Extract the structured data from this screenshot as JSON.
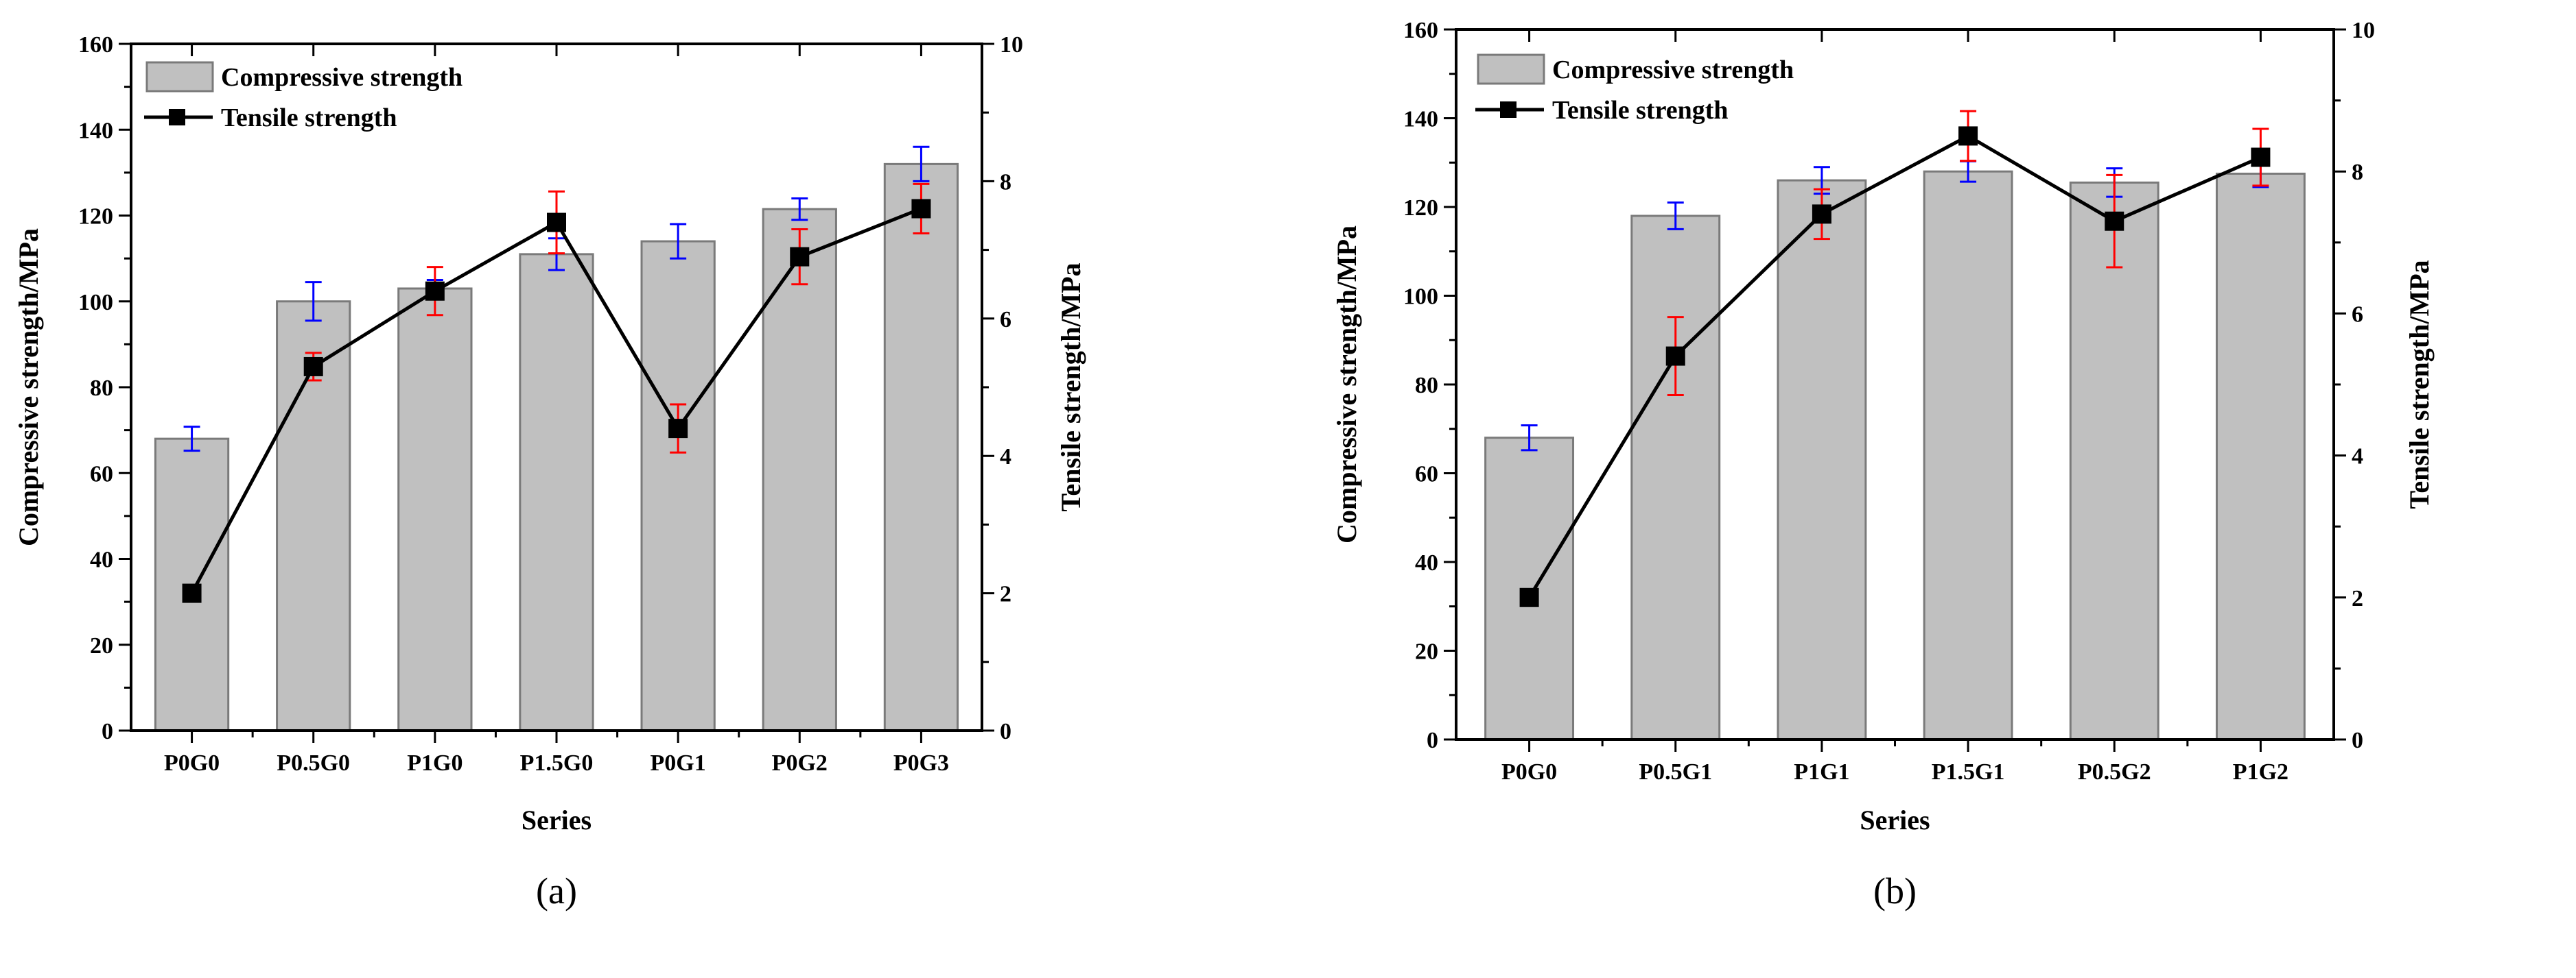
{
  "colors": {
    "bar": "#c0c0c0",
    "bar_edge": "#7a7a7a",
    "line": "#000000",
    "err_compressive": "#0000ff",
    "err_tensile": "#ff0000"
  },
  "chart_data": [
    {
      "type": "bar",
      "panel_label": "(a)",
      "xlabel": "Series",
      "ylabel": "Compressive strength/MPa",
      "y2label": "Tensile strength/MPa",
      "ylim": [
        0,
        160
      ],
      "yticks": [
        "0",
        "20",
        "40",
        "60",
        "80",
        "100",
        "120",
        "140",
        "160"
      ],
      "y2lim": [
        0,
        10
      ],
      "y2ticks": [
        "0",
        "2",
        "4",
        "6",
        "8",
        "10"
      ],
      "legend": {
        "position": "top-left",
        "entries": [
          "Compressive strength",
          "Tensile strength"
        ]
      },
      "categories": [
        "P0G0",
        "P0.5G0",
        "P1G0",
        "P1.5G0",
        "P0G1",
        "P0G2",
        "P0G3"
      ],
      "series": [
        {
          "name": "Compressive strength",
          "type": "bar",
          "axis": "left",
          "values": [
            68,
            100,
            103,
            111,
            114,
            121.5,
            132
          ],
          "errors": [
            2.8,
            4.5,
            2,
            3.7,
            4,
            2.5,
            4
          ]
        },
        {
          "name": "Tensile strength",
          "type": "line",
          "axis": "right",
          "values": [
            2.0,
            5.3,
            6.4,
            7.4,
            4.4,
            6.9,
            7.6
          ],
          "errors": [
            0.1,
            0.2,
            0.35,
            0.45,
            0.35,
            0.4,
            0.36
          ]
        }
      ]
    },
    {
      "type": "bar",
      "panel_label": "(b)",
      "xlabel": "Series",
      "ylabel": "Compressive strength/MPa",
      "y2label": "Tensile strength/MPa",
      "ylim": [
        0,
        160
      ],
      "yticks": [
        "0",
        "20",
        "40",
        "60",
        "80",
        "100",
        "120",
        "140",
        "160"
      ],
      "y2lim": [
        0,
        10
      ],
      "y2ticks": [
        "0",
        "2",
        "4",
        "6",
        "8",
        "10"
      ],
      "legend": {
        "position": "top-left",
        "entries": [
          "Compressive strength",
          "Tensile strength"
        ]
      },
      "categories": [
        "P0G0",
        "P0.5G1",
        "P1G1",
        "P1.5G1",
        "P0.5G2",
        "P1G2"
      ],
      "series": [
        {
          "name": "Compressive strength",
          "type": "bar",
          "axis": "left",
          "values": [
            68,
            118,
            126,
            128,
            125.5,
            127.5
          ],
          "errors": [
            2.8,
            3,
            3,
            2.3,
            3.2,
            3
          ]
        },
        {
          "name": "Tensile strength",
          "type": "line",
          "axis": "right",
          "values": [
            2.0,
            5.4,
            7.4,
            8.5,
            7.3,
            8.2
          ],
          "errors": [
            0.1,
            0.55,
            0.35,
            0.35,
            0.65,
            0.4
          ]
        }
      ]
    }
  ]
}
